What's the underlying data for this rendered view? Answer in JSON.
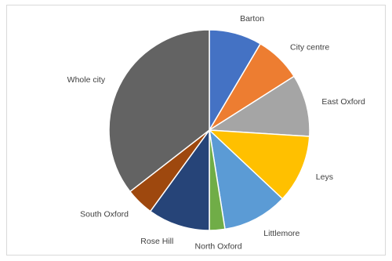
{
  "chart_data": {
    "type": "pie",
    "title": "",
    "categories": [
      "Barton",
      "City centre",
      "East Oxford",
      "Leys",
      "Littlemore",
      "North Oxford",
      "Rose Hill",
      "South Oxford",
      "Whole city"
    ],
    "values": [
      8.5,
      7.5,
      10,
      11,
      10.5,
      2.5,
      10,
      4.5,
      35.5
    ],
    "colors": [
      "#4472C4",
      "#ED7D31",
      "#A5A5A5",
      "#FFC000",
      "#5B9BD5",
      "#70AD47",
      "#264478",
      "#9E480E",
      "#636363"
    ],
    "start_angle_deg": 0,
    "direction": "clockwise",
    "legend": "none",
    "data_labels": "category-names-outside"
  }
}
